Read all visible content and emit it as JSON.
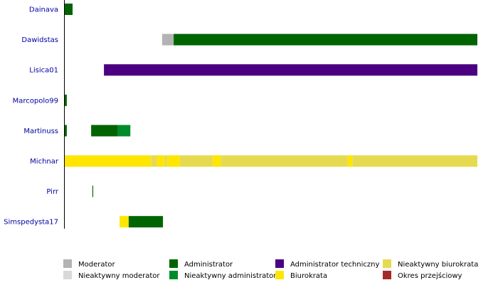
{
  "chart_data": {
    "type": "bar",
    "orientation": "horizontal-timeline",
    "title": "",
    "xlabel": "",
    "ylabel": "",
    "users": [
      "Dainava",
      "Dawidstas",
      "Lisica01",
      "Marcopolo99",
      "Martinuss",
      "Michnar",
      "Pirr",
      "Simspedysta17"
    ],
    "x_range": [
      0,
      100
    ],
    "x_unit": "percent-of-timeline",
    "grid": false,
    "legend_position": "bottom",
    "roles": [
      {
        "key": "moderator",
        "name": "Moderator",
        "color": "#b3b3b3"
      },
      {
        "key": "inactive_moderator",
        "name": "Nieaktywny moderator",
        "color": "#d9d9d9"
      },
      {
        "key": "administrator",
        "name": "Administrator",
        "color": "#006400"
      },
      {
        "key": "inactive_administrator",
        "name": "Nieaktywny administrator",
        "color": "#008b2b"
      },
      {
        "key": "technical_administrator",
        "name": "Administrator techniczny",
        "color": "#4b0082"
      },
      {
        "key": "bureaucrat",
        "name": "Biurokrata",
        "color": "#ffe600"
      },
      {
        "key": "inactive_bureaucrat",
        "name": "Nieaktywny biurokrata",
        "color": "#e6db50"
      },
      {
        "key": "transition_period",
        "name": "Okres przejściowy",
        "color": "#a52a2a"
      }
    ],
    "segments": [
      {
        "user": 0,
        "role": "administrator",
        "start": 0.0,
        "end": 1.9
      },
      {
        "user": 1,
        "role": "moderator",
        "start": 23.6,
        "end": 26.4
      },
      {
        "user": 1,
        "role": "administrator",
        "start": 26.4,
        "end": 100.0
      },
      {
        "user": 2,
        "role": "technical_administrator",
        "start": 9.5,
        "end": 100.0
      },
      {
        "user": 3,
        "role": "administrator",
        "start": 0.0,
        "end": 0.5
      },
      {
        "user": 4,
        "role": "administrator",
        "start": 0.0,
        "end": 0.5
      },
      {
        "user": 4,
        "role": "administrator",
        "start": 6.4,
        "end": 12.9
      },
      {
        "user": 4,
        "role": "inactive_administrator",
        "start": 12.9,
        "end": 15.9
      },
      {
        "user": 5,
        "role": "bureaucrat",
        "start": 0.0,
        "end": 20.9
      },
      {
        "user": 5,
        "role": "inactive_bureaucrat",
        "start": 20.9,
        "end": 22.4
      },
      {
        "user": 5,
        "role": "bureaucrat",
        "start": 22.4,
        "end": 24.1
      },
      {
        "user": 5,
        "role": "inactive_bureaucrat",
        "start": 24.1,
        "end": 24.8
      },
      {
        "user": 5,
        "role": "bureaucrat",
        "start": 24.8,
        "end": 27.9
      },
      {
        "user": 5,
        "role": "inactive_bureaucrat",
        "start": 27.9,
        "end": 35.9
      },
      {
        "user": 5,
        "role": "bureaucrat",
        "start": 35.9,
        "end": 37.8
      },
      {
        "user": 5,
        "role": "inactive_bureaucrat",
        "start": 37.8,
        "end": 68.6
      },
      {
        "user": 5,
        "role": "bureaucrat",
        "start": 68.6,
        "end": 69.7
      },
      {
        "user": 5,
        "role": "inactive_bureaucrat",
        "start": 69.7,
        "end": 100.0
      },
      {
        "user": 6,
        "role": "administrator",
        "start": 6.7,
        "end": 6.9
      },
      {
        "user": 7,
        "role": "bureaucrat",
        "start": 13.3,
        "end": 15.5
      },
      {
        "user": 7,
        "role": "administrator",
        "start": 15.5,
        "end": 23.8
      }
    ]
  }
}
